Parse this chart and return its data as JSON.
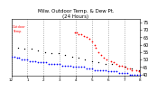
{
  "title": "Milw. Outdoor Temp. & Dew Pt.",
  "subtitle": "(24 Hours)",
  "bg_color": "#ffffff",
  "grid_color": "#888888",
  "ylim": [
    39,
    77
  ],
  "yticks": [
    40,
    45,
    50,
    55,
    60,
    65,
    70,
    75
  ],
  "ylabel_fontsize": 3.5,
  "temp_color": "#ff0000",
  "dew_color": "#0000ff",
  "hi_color": "#000000",
  "title_fontsize": 4.0,
  "tick_fontsize": 3.0,
  "legend_label": "Outdoor\nTemp.",
  "vgrid_x": [
    0,
    12,
    24,
    36,
    48,
    60,
    72,
    84,
    96
  ],
  "xlim": [
    0,
    96
  ],
  "xtick_pos": [
    0,
    12,
    24,
    36,
    48,
    60,
    72,
    84,
    96
  ],
  "xtick_labels": [
    "12",
    "1",
    "2",
    "3",
    "4",
    "5",
    "6",
    "7",
    "8"
  ],
  "temp_x": [
    47,
    49,
    50,
    52,
    54,
    56,
    58,
    60,
    62,
    63,
    65,
    67,
    69,
    71,
    74,
    76,
    78,
    80,
    82,
    84,
    86,
    88,
    90,
    93,
    95
  ],
  "temp_y": [
    68,
    68,
    67,
    67,
    66,
    65,
    64,
    62,
    60,
    58,
    55,
    53,
    51,
    50,
    49,
    48,
    47,
    46,
    46,
    45,
    44,
    44,
    43,
    43,
    42
  ],
  "dew_x": [
    0,
    2,
    4,
    6,
    8,
    10,
    12,
    14,
    16,
    18,
    20,
    22,
    24,
    26,
    28,
    30,
    32,
    34,
    36,
    38,
    40,
    42,
    44,
    46,
    48,
    50,
    52,
    54,
    56,
    58,
    60,
    62,
    64,
    66,
    68,
    70,
    72,
    74,
    76,
    78,
    80,
    82,
    84,
    86,
    88,
    90,
    92,
    94,
    96
  ],
  "dew_y": [
    52,
    52,
    51,
    51,
    50,
    50,
    50,
    49,
    49,
    49,
    48,
    48,
    48,
    48,
    47,
    47,
    47,
    47,
    47,
    46,
    46,
    46,
    46,
    45,
    45,
    45,
    45,
    45,
    44,
    44,
    44,
    43,
    43,
    43,
    43,
    43,
    42,
    42,
    42,
    42,
    41,
    41,
    41,
    41,
    40,
    40,
    40,
    40,
    40
  ],
  "black_x": [
    5,
    10,
    15,
    20,
    25,
    30,
    35,
    40,
    45,
    50,
    55,
    60,
    65,
    70,
    75,
    80,
    85,
    90,
    95
  ],
  "black_y": [
    58,
    57,
    57,
    56,
    55,
    54,
    54,
    53,
    52,
    51,
    50,
    49,
    48,
    47,
    47,
    46,
    45,
    44,
    43
  ]
}
